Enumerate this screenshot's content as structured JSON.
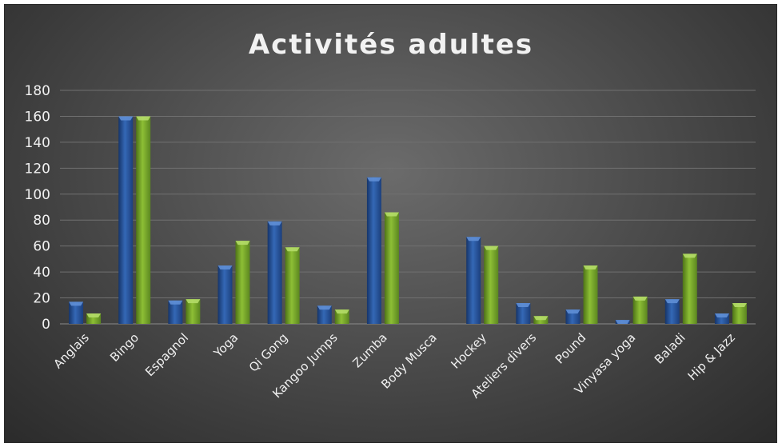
{
  "chart_data": {
    "type": "bar",
    "title": "Activités adultes",
    "categories": [
      "Anglais",
      "Bingo",
      "Espagnol",
      "Yoga",
      "Qi Gong",
      "Kangoo Jumps",
      "Zumba",
      "Body Musca",
      "Hockey",
      "Ateliers divers",
      "Pound",
      "Vinyasa yoga",
      "Baladi",
      "Hip & Jazz"
    ],
    "series": [
      {
        "color": "#2e5fa8",
        "values": [
          17,
          160,
          18,
          45,
          79,
          14,
          113,
          0,
          67,
          16,
          11,
          3,
          19,
          8
        ]
      },
      {
        "color": "#7aa82a",
        "values": [
          8,
          160,
          19,
          64,
          59,
          11,
          86,
          0,
          60,
          6,
          45,
          21,
          54,
          16
        ]
      }
    ],
    "ylim": [
      0,
      180
    ],
    "yticks": [
      0,
      20,
      40,
      60,
      80,
      100,
      120,
      140,
      160,
      180
    ],
    "grid": true,
    "legend": "none",
    "xlabel": "",
    "ylabel": ""
  }
}
